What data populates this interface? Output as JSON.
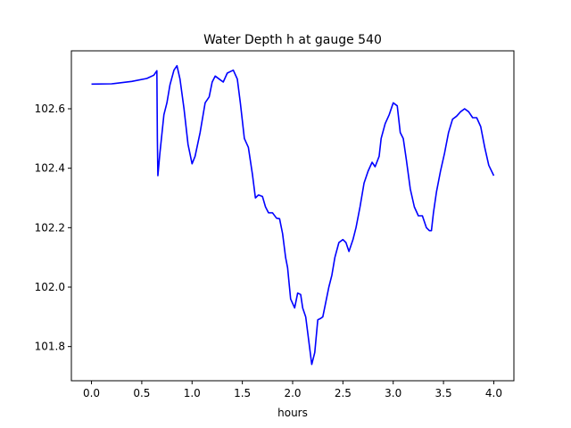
{
  "chart_data": {
    "type": "line",
    "title": "Water Depth h at gauge 540",
    "xlabel": "hours",
    "ylabel": "",
    "xlim": [
      -0.2,
      4.2
    ],
    "ylim": [
      101.685,
      102.795
    ],
    "xticks": [
      0.0,
      0.5,
      1.0,
      1.5,
      2.0,
      2.5,
      3.0,
      3.5,
      4.0
    ],
    "xtick_labels": [
      "0.0",
      "0.5",
      "1.0",
      "1.5",
      "2.0",
      "2.5",
      "3.0",
      "3.5",
      "4.0"
    ],
    "yticks": [
      101.8,
      102.0,
      102.2,
      102.4,
      102.6
    ],
    "ytick_labels": [
      "101.8",
      "102.0",
      "102.2",
      "102.4",
      "102.6"
    ],
    "grid": false,
    "line_color": "#0000ff",
    "series": [
      {
        "x": [
          0.0,
          0.2,
          0.4,
          0.55,
          0.62,
          0.65,
          0.655,
          0.66,
          0.68,
          0.72,
          0.75,
          0.78,
          0.82,
          0.85,
          0.88,
          0.92,
          0.96,
          1.0,
          1.03,
          1.08,
          1.13,
          1.17,
          1.2,
          1.23,
          1.27,
          1.31,
          1.35,
          1.38,
          1.41,
          1.45,
          1.48,
          1.52,
          1.56,
          1.6,
          1.63,
          1.66,
          1.7,
          1.73,
          1.76,
          1.8,
          1.84,
          1.87,
          1.9,
          1.93,
          1.95,
          1.98,
          2.02,
          2.05,
          2.08,
          2.1,
          2.13,
          2.16,
          2.19,
          2.22,
          2.25,
          2.28,
          2.3,
          2.33,
          2.36,
          2.39,
          2.42,
          2.46,
          2.5,
          2.53,
          2.56,
          2.6,
          2.63,
          2.67,
          2.71,
          2.75,
          2.79,
          2.82,
          2.86,
          2.88,
          2.92,
          2.96,
          3.0,
          3.04,
          3.07,
          3.1,
          3.13,
          3.17,
          3.21,
          3.25,
          3.29,
          3.33,
          3.36,
          3.38,
          3.4,
          3.43,
          3.47,
          3.51,
          3.55,
          3.59,
          3.63,
          3.67,
          3.71,
          3.75,
          3.79,
          3.83,
          3.87,
          3.91,
          3.95,
          4.0
        ],
        "y": [
          102.683,
          102.684,
          102.692,
          102.702,
          102.713,
          102.728,
          102.5,
          102.375,
          102.45,
          102.58,
          102.62,
          102.68,
          102.73,
          102.745,
          102.7,
          102.6,
          102.48,
          102.415,
          102.44,
          102.52,
          102.62,
          102.64,
          102.69,
          102.71,
          102.7,
          102.69,
          102.72,
          102.725,
          102.73,
          102.7,
          102.62,
          102.5,
          102.47,
          102.38,
          102.3,
          102.31,
          102.305,
          102.27,
          102.25,
          102.25,
          102.232,
          102.23,
          102.18,
          102.1,
          102.065,
          101.96,
          101.93,
          101.98,
          101.975,
          101.93,
          101.9,
          101.82,
          101.74,
          101.78,
          101.89,
          101.895,
          101.9,
          101.95,
          102.0,
          102.04,
          102.1,
          102.15,
          102.16,
          102.15,
          102.12,
          102.16,
          102.2,
          102.27,
          102.35,
          102.39,
          102.42,
          102.405,
          102.44,
          102.5,
          102.55,
          102.58,
          102.62,
          102.61,
          102.52,
          102.5,
          102.43,
          102.33,
          102.27,
          102.24,
          102.24,
          102.2,
          102.19,
          102.19,
          102.25,
          102.32,
          102.39,
          102.45,
          102.52,
          102.565,
          102.575,
          102.59,
          102.6,
          102.59,
          102.57,
          102.57,
          102.54,
          102.47,
          102.41,
          102.375
        ]
      }
    ]
  }
}
